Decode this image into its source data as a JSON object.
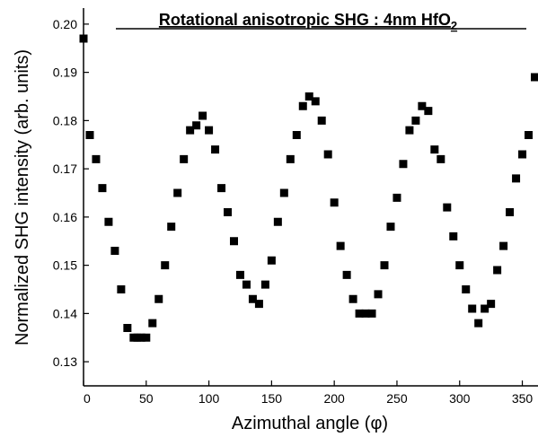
{
  "chart_data": {
    "type": "scatter",
    "title_main": "Rotational anisotropic SHG : 4nm HfO",
    "title_sub": "2",
    "xlabel": "Azimuthal angle (φ)",
    "ylabel": "Normalized SHG intensity (arb. units)",
    "xlim": [
      0,
      360
    ],
    "ylim": [
      0.125,
      0.205
    ],
    "xticks": [
      0,
      50,
      100,
      150,
      200,
      250,
      300,
      350
    ],
    "yticks": [
      0.13,
      0.14,
      0.15,
      0.16,
      0.17,
      0.18,
      0.19,
      0.2
    ],
    "ytick_labels": [
      "0.13",
      "0.14",
      "0.15",
      "0.16",
      "0.17",
      "0.18",
      "0.19",
      "0.20"
    ],
    "grid": false,
    "marker": "square",
    "marker_color": "#000000",
    "series": [
      {
        "x": [
          0,
          5,
          10,
          15,
          20,
          25,
          30,
          35,
          40,
          43,
          46,
          50,
          55,
          60,
          65,
          70,
          75,
          80,
          85,
          90,
          95,
          100,
          105,
          110,
          115,
          120,
          125,
          130,
          135,
          140,
          145,
          150,
          155,
          160,
          165,
          170,
          175,
          180,
          185,
          190,
          195,
          200,
          205,
          210,
          215,
          220,
          225,
          230,
          235,
          240,
          245,
          250,
          255,
          260,
          265,
          270,
          275,
          280,
          285,
          290,
          295,
          300,
          305,
          310,
          315,
          320,
          325,
          330,
          335,
          340,
          345,
          350,
          355,
          360
        ],
        "y": [
          0.197,
          0.177,
          0.172,
          0.166,
          0.159,
          0.153,
          0.145,
          0.137,
          0.135,
          0.135,
          0.135,
          0.135,
          0.138,
          0.143,
          0.15,
          0.158,
          0.165,
          0.172,
          0.178,
          0.179,
          0.181,
          0.178,
          0.174,
          0.166,
          0.161,
          0.155,
          0.148,
          0.146,
          0.143,
          0.142,
          0.146,
          0.151,
          0.159,
          0.165,
          0.172,
          0.177,
          0.183,
          0.185,
          0.184,
          0.18,
          0.173,
          0.163,
          0.154,
          0.148,
          0.143,
          0.14,
          0.14,
          0.14,
          0.144,
          0.15,
          0.158,
          0.164,
          0.171,
          0.178,
          0.18,
          0.183,
          0.182,
          0.174,
          0.172,
          0.162,
          0.156,
          0.15,
          0.145,
          0.141,
          0.138,
          0.141,
          0.142,
          0.149,
          0.154,
          0.161,
          0.168,
          0.173,
          0.177,
          0.189
        ]
      }
    ]
  }
}
